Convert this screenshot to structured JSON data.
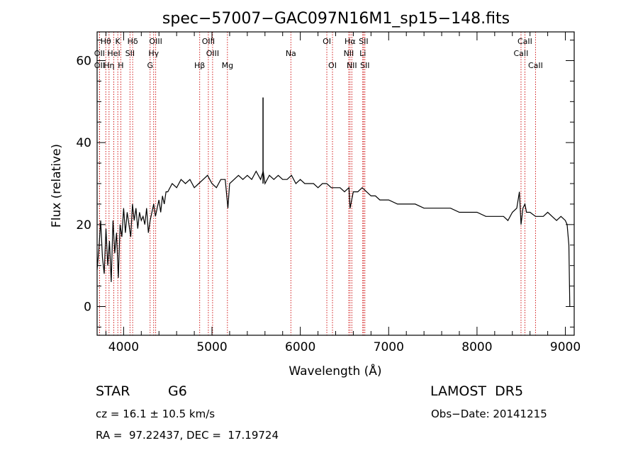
{
  "chart_data": {
    "type": "line",
    "title": "spec−57007−GAC097N16M1_sp15−148.fits",
    "xlabel": "Wavelength (Å)",
    "ylabel": "Flux (relative)",
    "xlim": [
      3700,
      9100
    ],
    "ylim": [
      -7,
      67
    ],
    "x_ticks": [
      4000,
      5000,
      6000,
      7000,
      8000,
      9000
    ],
    "y_ticks": [
      0,
      20,
      40,
      60
    ],
    "grid": false,
    "line_color": "#000000",
    "marker_color": "#cc0000",
    "spectrum": {
      "x": [
        3700,
        3720,
        3740,
        3760,
        3780,
        3800,
        3820,
        3840,
        3860,
        3880,
        3900,
        3920,
        3940,
        3960,
        3980,
        4000,
        4020,
        4040,
        4060,
        4080,
        4100,
        4120,
        4140,
        4160,
        4180,
        4200,
        4220,
        4240,
        4260,
        4280,
        4300,
        4320,
        4340,
        4360,
        4380,
        4400,
        4420,
        4440,
        4460,
        4480,
        4500,
        4550,
        4600,
        4650,
        4700,
        4750,
        4800,
        4850,
        4900,
        4950,
        5000,
        5050,
        5100,
        5150,
        5180,
        5200,
        5250,
        5300,
        5350,
        5400,
        5450,
        5500,
        5550,
        5580,
        5600,
        5650,
        5700,
        5750,
        5800,
        5850,
        5900,
        5950,
        6000,
        6050,
        6100,
        6150,
        6200,
        6250,
        6300,
        6350,
        6400,
        6450,
        6500,
        6550,
        6563,
        6600,
        6650,
        6700,
        6750,
        6800,
        6850,
        6900,
        6950,
        7000,
        7100,
        7200,
        7300,
        7400,
        7500,
        7600,
        7700,
        7800,
        7900,
        8000,
        8100,
        8200,
        8300,
        8350,
        8400,
        8450,
        8480,
        8498,
        8520,
        8542,
        8560,
        8600,
        8662,
        8700,
        8750,
        8800,
        8850,
        8900,
        8950,
        9000,
        9020,
        9040,
        9050
      ],
      "y": [
        9,
        14,
        21,
        12,
        8,
        19,
        10,
        16,
        6,
        21,
        13,
        18,
        7,
        20,
        17,
        24,
        18,
        23,
        20,
        17,
        25,
        21,
        24,
        19,
        23,
        21,
        22,
        20,
        24,
        18,
        21,
        23,
        25,
        22,
        24,
        26,
        23,
        27,
        25,
        28,
        28,
        30,
        29,
        31,
        30,
        31,
        29,
        30,
        31,
        32,
        30,
        29,
        31,
        31,
        24,
        30,
        31,
        32,
        31,
        32,
        31,
        33,
        31,
        33,
        30,
        32,
        31,
        32,
        31,
        31,
        32,
        30,
        31,
        30,
        30,
        30,
        29,
        30,
        30,
        29,
        29,
        29,
        28,
        29,
        24,
        28,
        28,
        29,
        28,
        27,
        27,
        26,
        26,
        26,
        25,
        25,
        25,
        24,
        24,
        24,
        24,
        23,
        23,
        23,
        22,
        22,
        22,
        21,
        23,
        24,
        28,
        20,
        24,
        25,
        23,
        23,
        22,
        22,
        22,
        23,
        22,
        21,
        22,
        21,
        20,
        15,
        0
      ],
      "spike": {
        "x": 5578,
        "y": 51
      }
    },
    "lines": [
      {
        "x": 3727,
        "label": "OII",
        "row": 1
      },
      {
        "x": 3727,
        "label": "OII",
        "row": 2
      },
      {
        "x": 3798,
        "label": "Hθ",
        "row": 0
      },
      {
        "x": 3835,
        "label": "Hη",
        "row": 2
      },
      {
        "x": 3889,
        "label": "HeI",
        "row": 1
      },
      {
        "x": 3934,
        "label": "K",
        "row": 0
      },
      {
        "x": 3968,
        "label": "H",
        "row": 2
      },
      {
        "x": 4072,
        "label": "SII",
        "row": 1
      },
      {
        "x": 4102,
        "label": "Hδ",
        "row": 0
      },
      {
        "x": 4300,
        "label": "G",
        "row": 2
      },
      {
        "x": 4340,
        "label": "Hγ",
        "row": 1
      },
      {
        "x": 4363,
        "label": "OIII",
        "row": 0
      },
      {
        "x": 4861,
        "label": "Hβ",
        "row": 2
      },
      {
        "x": 4959,
        "label": "OIII",
        "row": 0
      },
      {
        "x": 5007,
        "label": "OIII",
        "row": 1
      },
      {
        "x": 5175,
        "label": "Mg",
        "row": 2
      },
      {
        "x": 5893,
        "label": "Na",
        "row": 1
      },
      {
        "x": 6300,
        "label": "OI",
        "row": 0
      },
      {
        "x": 6364,
        "label": "OI",
        "row": 2
      },
      {
        "x": 6548,
        "label": "NII",
        "row": 1
      },
      {
        "x": 6563,
        "label": "Hα",
        "row": 0
      },
      {
        "x": 6583,
        "label": "NII",
        "row": 2
      },
      {
        "x": 6707,
        "label": "Li",
        "row": 1
      },
      {
        "x": 6716,
        "label": "SII",
        "row": 0
      },
      {
        "x": 6731,
        "label": "SII",
        "row": 2
      },
      {
        "x": 8498,
        "label": "CaII",
        "row": 1
      },
      {
        "x": 8542,
        "label": "CaII",
        "row": 0
      },
      {
        "x": 8662,
        "label": "CaII",
        "row": 2
      }
    ]
  },
  "footer": {
    "object_class": "STAR",
    "subclass": "G6",
    "survey": "LAMOST  DR5",
    "cz": "cz = 16.1 ± 10.5 km/s",
    "obs_date": "Obs−Date: 20141215",
    "radec": "RA =  97.22437, DEC =  17.19724"
  }
}
